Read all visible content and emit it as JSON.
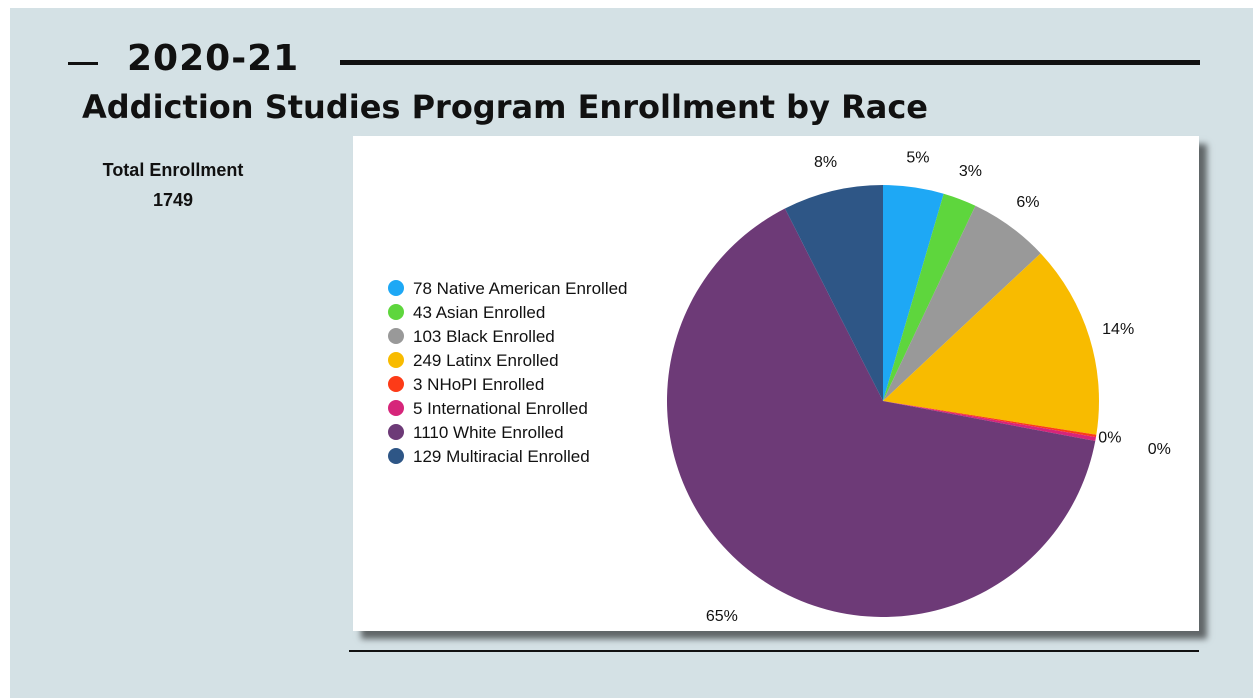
{
  "header": {
    "year": "2020-21",
    "title": "Addiction Studies Program Enrollment by Race"
  },
  "summary": {
    "label": "Total Enrollment",
    "value": "1749"
  },
  "chart_data": {
    "type": "pie",
    "title": "",
    "legend_position": "left",
    "start": "top, clockwise",
    "slices": [
      {
        "label": "78 Native American Enrolled",
        "value": 78,
        "percent_label": "5%",
        "color": "#1ea8f5"
      },
      {
        "label": "43 Asian Enrolled",
        "value": 43,
        "percent_label": "3%",
        "color": "#5ed63d"
      },
      {
        "label": "103 Black Enrolled",
        "value": 103,
        "percent_label": "6%",
        "color": "#999999"
      },
      {
        "label": "249 Latinx Enrolled",
        "value": 249,
        "percent_label": "14%",
        "color": "#f8bb00"
      },
      {
        "label": "3 NHoPI Enrolled",
        "value": 3,
        "percent_label": "0%",
        "color": "#fd3b17"
      },
      {
        "label": "5 International Enrolled",
        "value": 5,
        "percent_label": "0%",
        "color": "#d6257a"
      },
      {
        "label": "1110 White Enrolled",
        "value": 1110,
        "percent_label": "65%",
        "color": "#6d3a77"
      },
      {
        "label": "129 Multiracial Enrolled",
        "value": 129,
        "percent_label": "8%",
        "color": "#2e5686"
      }
    ]
  }
}
